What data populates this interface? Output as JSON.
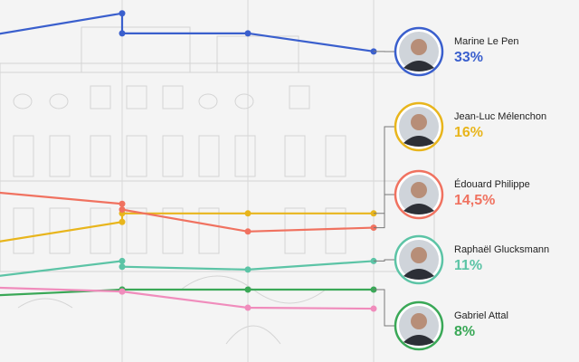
{
  "chart_data": {
    "type": "line",
    "x": [
      0,
      1,
      1,
      2,
      3
    ],
    "xlim": [
      0,
      3
    ],
    "ylim": [
      0.4,
      38.4
    ],
    "grid": true,
    "series": [
      {
        "name": "Marine Le Pen",
        "color": "#3a5fcd",
        "values": [
          34.8,
          37.0,
          34.9,
          34.9,
          33
        ],
        "value_label": "33%"
      },
      {
        "name": "Jean-Luc Mélenchon",
        "color": "#e8b51c",
        "values": [
          13.0,
          15.1,
          16.0,
          16.0,
          16
        ],
        "value_label": "16%"
      },
      {
        "name": "Édouard Philippe",
        "color": "#f07260",
        "values": [
          18.2,
          17.0,
          16.4,
          14.1,
          14.5
        ],
        "value_label": "14,5%"
      },
      {
        "name": "Raphaël Glucksmann",
        "color": "#5cc4a6",
        "values": [
          9.4,
          11.0,
          10.4,
          10.1,
          11
        ],
        "value_label": "11%"
      },
      {
        "name": "Gabriel Attal",
        "color": "#3aa857",
        "values": [
          7.4,
          8.0,
          8.0,
          8.0,
          8
        ],
        "value_label": "8%"
      },
      {
        "color": "#f08cbc",
        "values": [
          8.2,
          7.8,
          7.8,
          6.1,
          6.0
        ]
      }
    ]
  }
}
